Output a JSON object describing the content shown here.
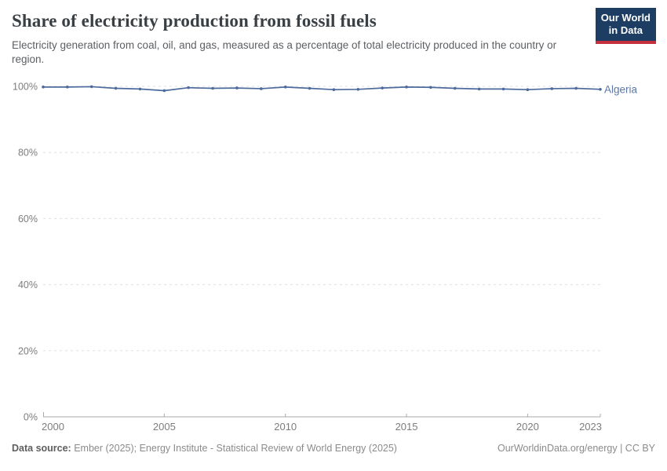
{
  "header": {
    "title": "Share of electricity production from fossil fuels",
    "subtitle": "Electricity generation from coal, oil, and gas, measured as a percentage of total electricity produced in the country or region."
  },
  "logo": {
    "line1": "Our World",
    "line2": "in Data"
  },
  "footer": {
    "source_label": "Data source:",
    "source_text": " Ember (2025); Energy Institute - Statistical Review of World Energy (2025)",
    "link_text": "OurWorldinData.org/energy | CC BY"
  },
  "colors": {
    "line": "#4c6a9c",
    "entity_label": "#5b77a8",
    "grid": "#e0e0e0",
    "axis": "#a8a8a8",
    "tick_text": "#7d7d7d",
    "logo_navy": "#1d3d63",
    "logo_red": "#c5303e"
  },
  "chart_data": {
    "type": "line",
    "title": "Share of electricity production from fossil fuels",
    "xlabel": "",
    "ylabel": "",
    "xlim": [
      2000,
      2023
    ],
    "ylim": [
      0,
      100
    ],
    "grid": true,
    "legend_position": "end-of-line-label",
    "x_ticks": [
      2000,
      2005,
      2010,
      2015,
      2020,
      2023
    ],
    "y_ticks": [
      0,
      20,
      40,
      60,
      80,
      100
    ],
    "y_tick_suffix": "%",
    "series": [
      {
        "name": "Algeria",
        "x": [
          2000,
          2001,
          2002,
          2003,
          2004,
          2005,
          2006,
          2007,
          2008,
          2009,
          2010,
          2011,
          2012,
          2013,
          2014,
          2015,
          2016,
          2017,
          2018,
          2019,
          2020,
          2021,
          2022,
          2023
        ],
        "values": [
          99.8,
          99.8,
          99.9,
          99.4,
          99.2,
          98.7,
          99.6,
          99.4,
          99.5,
          99.3,
          99.8,
          99.4,
          99.0,
          99.1,
          99.5,
          99.8,
          99.7,
          99.4,
          99.2,
          99.2,
          99.0,
          99.3,
          99.4,
          99.1
        ]
      }
    ]
  }
}
